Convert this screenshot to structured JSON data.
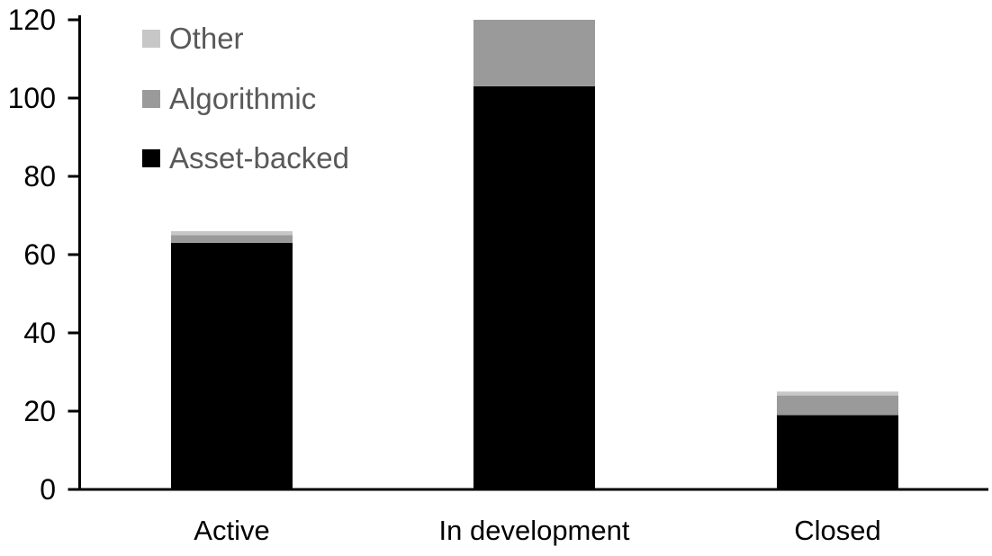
{
  "chart_data": {
    "type": "bar",
    "stacked": true,
    "title": "",
    "xlabel": "",
    "ylabel": "",
    "categories": [
      "Active",
      "In development",
      "Closed"
    ],
    "series": [
      {
        "name": "Asset-backed",
        "color": "#000000",
        "values": [
          63,
          103,
          19
        ]
      },
      {
        "name": "Algorithmic",
        "color": "#9A9A9A",
        "values": [
          2,
          17,
          5
        ]
      },
      {
        "name": "Other",
        "color": "#C7C7C7",
        "values": [
          1,
          0,
          1
        ]
      }
    ],
    "totals": [
      66,
      120,
      25
    ],
    "ylim": [
      0,
      120
    ],
    "yticks": [
      0,
      20,
      40,
      60,
      80,
      100,
      120
    ],
    "grid": false,
    "axis_color": "#000000",
    "legend": {
      "position": "top-left",
      "order_top_to_bottom": [
        "Other",
        "Algorithmic",
        "Asset-backed"
      ],
      "text_color": "#595959"
    }
  }
}
